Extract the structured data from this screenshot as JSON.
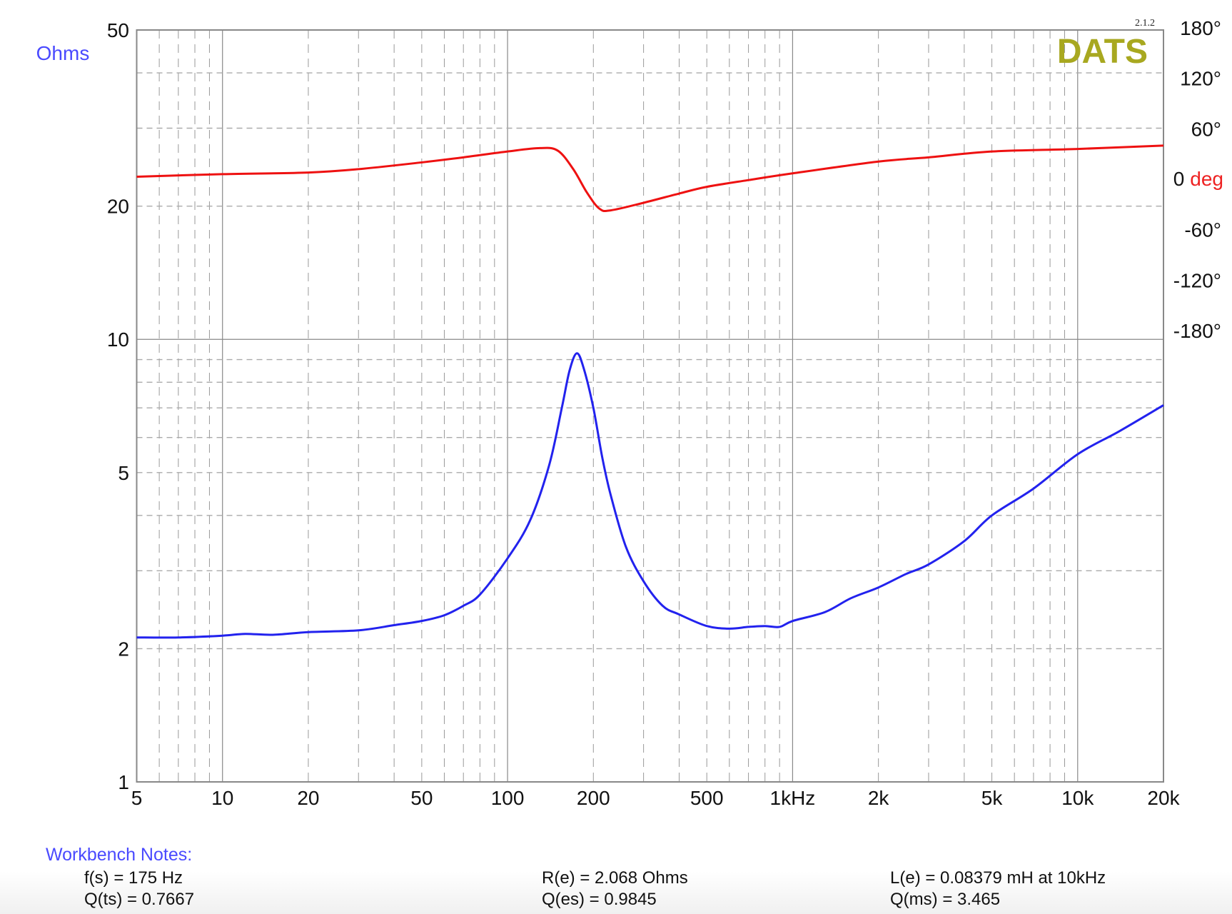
{
  "chart_data": {
    "type": "line",
    "brand": "DATS",
    "version": "2.1.2",
    "x_scale": "log",
    "xlim": [
      5,
      20000
    ],
    "x_ticks": [
      {
        "value": 5,
        "label": "5"
      },
      {
        "value": 10,
        "label": "10"
      },
      {
        "value": 20,
        "label": "20"
      },
      {
        "value": 50,
        "label": "50"
      },
      {
        "value": 100,
        "label": "100"
      },
      {
        "value": 200,
        "label": "200"
      },
      {
        "value": 500,
        "label": "500"
      },
      {
        "value": 1000,
        "label": "1kHz"
      },
      {
        "value": 2000,
        "label": "2k"
      },
      {
        "value": 5000,
        "label": "5k"
      },
      {
        "value": 10000,
        "label": "10k"
      },
      {
        "value": 20000,
        "label": "20k"
      }
    ],
    "y_left": {
      "label": "Ohms",
      "scale": "log",
      "lim": [
        1,
        50
      ],
      "ticks": [
        {
          "value": 50,
          "label": "50"
        },
        {
          "value": 20,
          "label": "20"
        },
        {
          "value": 10,
          "label": "10"
        },
        {
          "value": 5,
          "label": "5"
        },
        {
          "value": 2,
          "label": "2"
        },
        {
          "value": 1,
          "label": "1"
        }
      ]
    },
    "y_right": {
      "label": "deg",
      "zero_label": "0",
      "lim": [
        -180,
        180
      ],
      "ticks": [
        {
          "value": 180,
          "label": "180°"
        },
        {
          "value": 120,
          "label": "120°"
        },
        {
          "value": 60,
          "label": "60°"
        },
        {
          "value": -60,
          "label": "-60°"
        },
        {
          "value": -120,
          "label": "-120°"
        },
        {
          "value": -180,
          "label": "-180°"
        }
      ]
    },
    "grid": true,
    "colors": {
      "impedance": "#2222ee",
      "phase": "#ee1111",
      "ohms_label": "#4a4aff",
      "deg_label": "#ee2222",
      "brand": "#a8a820",
      "grid": "#999999"
    },
    "series": [
      {
        "axis": "left",
        "x": [
          5,
          7,
          10,
          12,
          15,
          20,
          30,
          40,
          50,
          60,
          70,
          80,
          100,
          120,
          140,
          155,
          165,
          175,
          185,
          200,
          215,
          230,
          260,
          300,
          350,
          400,
          500,
          600,
          700,
          800,
          900,
          1000,
          1300,
          1600,
          2000,
          2500,
          3000,
          4000,
          5000,
          7000,
          10000,
          14000,
          20000
        ],
        "y": [
          2.12,
          2.12,
          2.14,
          2.16,
          2.15,
          2.18,
          2.2,
          2.26,
          2.31,
          2.38,
          2.5,
          2.65,
          3.2,
          3.9,
          5.2,
          7.0,
          8.5,
          9.3,
          8.6,
          7.0,
          5.4,
          4.45,
          3.4,
          2.84,
          2.5,
          2.39,
          2.25,
          2.22,
          2.24,
          2.25,
          2.24,
          2.31,
          2.42,
          2.6,
          2.75,
          2.95,
          3.1,
          3.5,
          4.0,
          4.6,
          5.5,
          6.2,
          7.1
        ]
      },
      {
        "axis": "right",
        "x": [
          5,
          10,
          20,
          30,
          50,
          70,
          100,
          130,
          150,
          170,
          190,
          210,
          230,
          300,
          400,
          500,
          700,
          1000,
          2000,
          3000,
          5000,
          10000,
          20000
        ],
        "y": [
          3,
          6,
          8,
          12,
          20,
          26,
          33,
          37,
          34,
          12,
          -16,
          -35,
          -37,
          -28,
          -17,
          -9,
          -1,
          7,
          21,
          26,
          33,
          36,
          40
        ]
      }
    ]
  },
  "notes": {
    "title": "Workbench Notes:",
    "fs": "f(s) = 175 Hz",
    "qts": "Q(ts) = 0.7667",
    "re": "R(e) = 2.068 Ohms",
    "qes": "Q(es) = 0.9845",
    "le": "L(e) = 0.08379 mH at 10kHz",
    "qms": "Q(ms) = 3.465"
  }
}
